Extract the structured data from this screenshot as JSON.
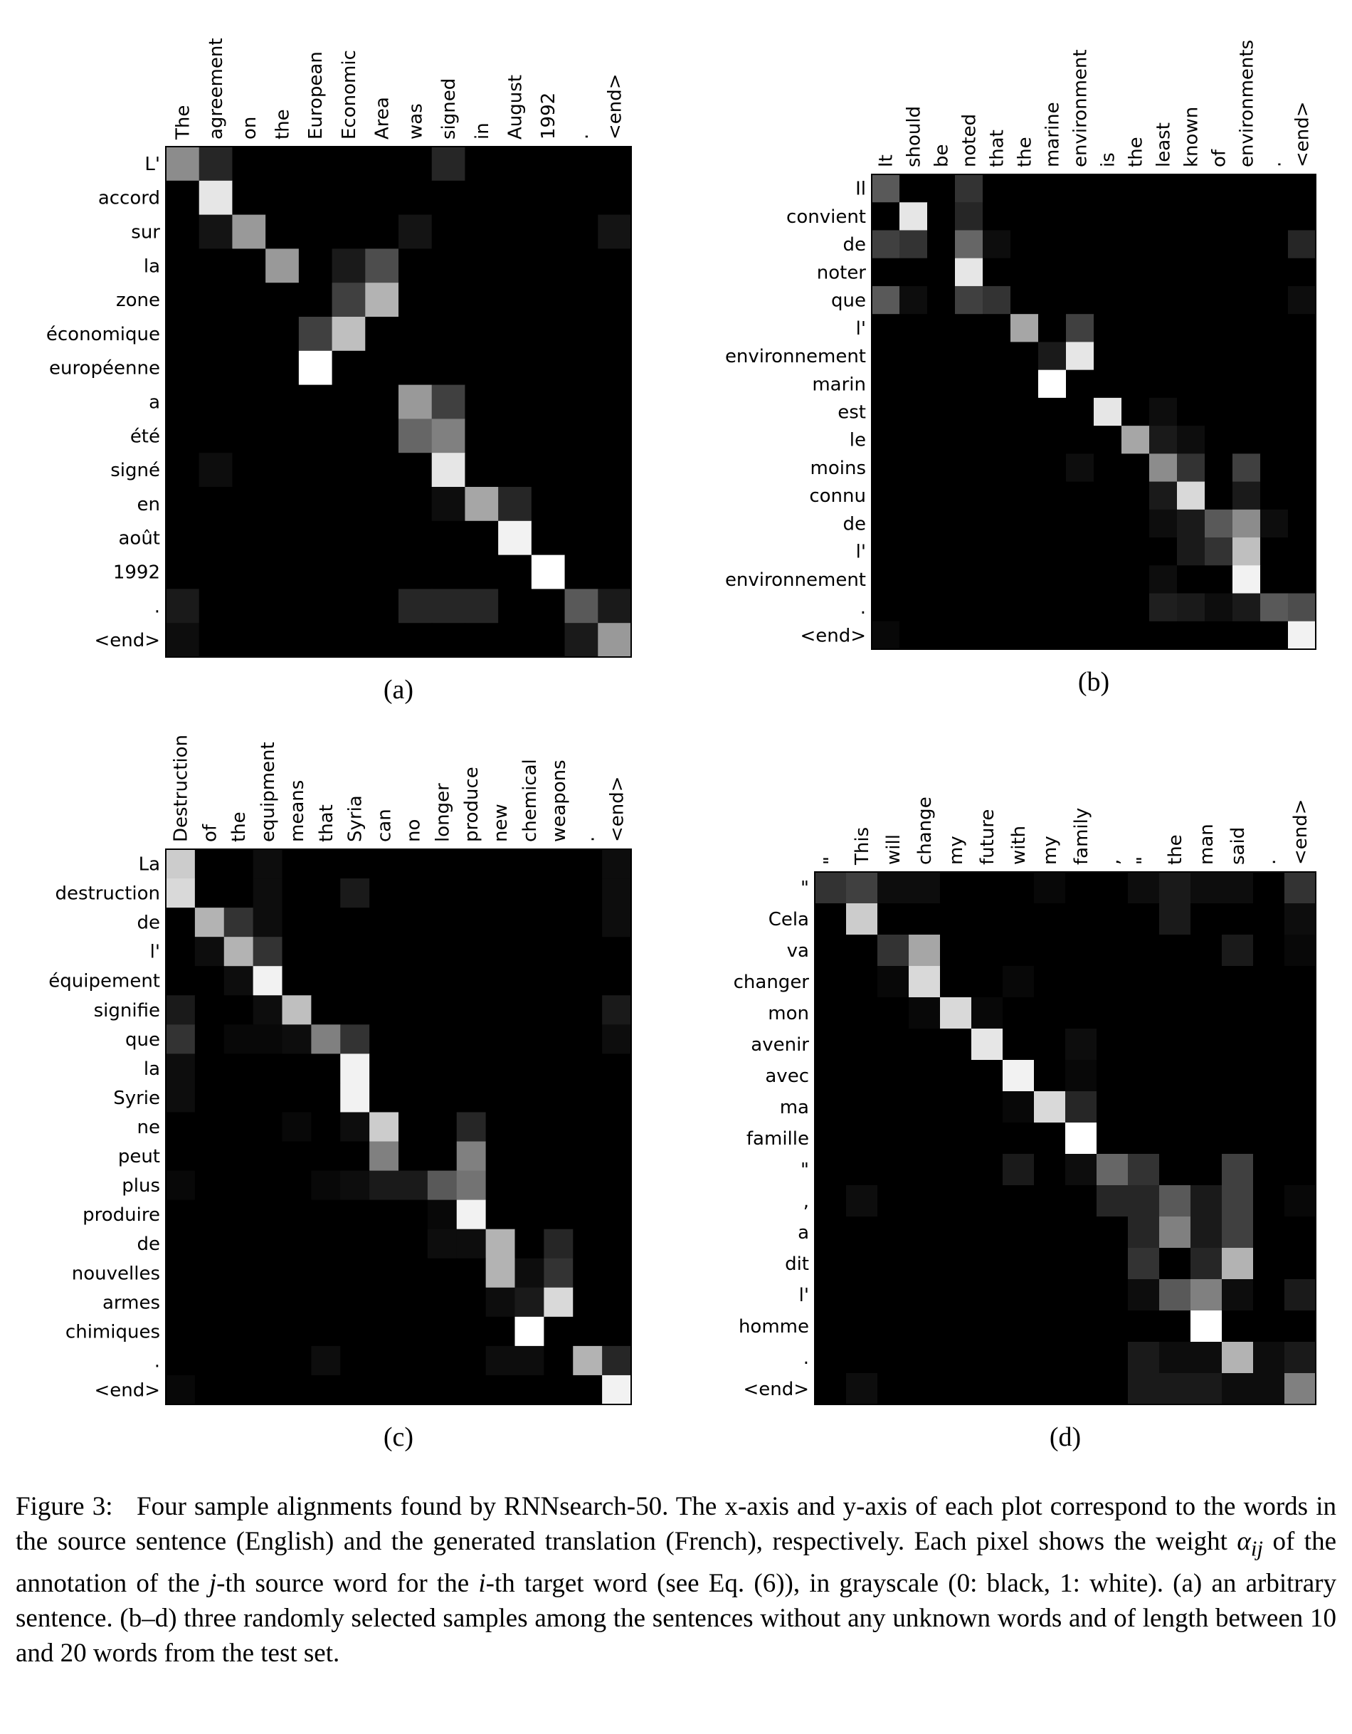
{
  "chart_data": [
    {
      "type": "heatmap",
      "panel_label": "(a)",
      "zlim": [
        0,
        1
      ],
      "x_categories": [
        "The",
        "agreement",
        "on",
        "the",
        "European",
        "Economic",
        "Area",
        "was",
        "signed",
        "in",
        "August",
        "1992",
        ".",
        "<end>"
      ],
      "y_categories": [
        "L'",
        "accord",
        "sur",
        "la",
        "zone",
        "économique",
        "européenne",
        "a",
        "été",
        "signé",
        "en",
        "août",
        "1992",
        ".",
        "<end>"
      ],
      "values": [
        [
          0.55,
          0.15,
          0,
          0,
          0,
          0,
          0,
          0,
          0.15,
          0,
          0,
          0,
          0,
          0
        ],
        [
          0,
          0.9,
          0,
          0,
          0,
          0,
          0,
          0,
          0,
          0,
          0,
          0,
          0,
          0
        ],
        [
          0,
          0.08,
          0.6,
          0,
          0,
          0,
          0,
          0.08,
          0,
          0,
          0,
          0,
          0,
          0.08
        ],
        [
          0,
          0,
          0,
          0.6,
          0,
          0.1,
          0.3,
          0,
          0,
          0,
          0,
          0,
          0,
          0
        ],
        [
          0,
          0,
          0,
          0,
          0,
          0.25,
          0.7,
          0,
          0,
          0,
          0,
          0,
          0,
          0
        ],
        [
          0,
          0,
          0,
          0,
          0.25,
          0.75,
          0,
          0,
          0,
          0,
          0,
          0,
          0,
          0
        ],
        [
          0,
          0,
          0,
          0,
          1,
          0,
          0,
          0,
          0,
          0,
          0,
          0,
          0,
          0
        ],
        [
          0,
          0,
          0,
          0,
          0,
          0,
          0,
          0.6,
          0.25,
          0,
          0,
          0,
          0,
          0
        ],
        [
          0,
          0,
          0,
          0,
          0,
          0,
          0,
          0.4,
          0.5,
          0,
          0,
          0,
          0,
          0
        ],
        [
          0,
          0.05,
          0,
          0,
          0,
          0,
          0,
          0,
          0.9,
          0,
          0,
          0,
          0,
          0
        ],
        [
          0,
          0,
          0,
          0,
          0,
          0,
          0,
          0,
          0.05,
          0.65,
          0.15,
          0,
          0,
          0
        ],
        [
          0,
          0,
          0,
          0,
          0,
          0,
          0,
          0,
          0,
          0,
          0.95,
          0,
          0,
          0
        ],
        [
          0,
          0,
          0,
          0,
          0,
          0,
          0,
          0,
          0,
          0,
          0,
          1,
          0,
          0
        ],
        [
          0.1,
          0,
          0,
          0,
          0,
          0,
          0,
          0.15,
          0.15,
          0.15,
          0,
          0,
          0.35,
          0.1
        ],
        [
          0.05,
          0,
          0,
          0,
          0,
          0,
          0,
          0,
          0,
          0,
          0,
          0,
          0.1,
          0.6
        ]
      ]
    },
    {
      "type": "heatmap",
      "panel_label": "(b)",
      "zlim": [
        0,
        1
      ],
      "x_categories": [
        "It",
        "should",
        "be",
        "noted",
        "that",
        "the",
        "marine",
        "environment",
        "is",
        "the",
        "least",
        "known",
        "of",
        "environments",
        ".",
        "<end>"
      ],
      "y_categories": [
        "Il",
        "convient",
        "de",
        "noter",
        "que",
        "l'",
        "environnement",
        "marin",
        "est",
        "le",
        "moins",
        "connu",
        "de",
        "l'",
        "environnement",
        ".",
        "<end>"
      ],
      "values": [
        [
          0.35,
          0,
          0,
          0.2,
          0,
          0,
          0,
          0,
          0,
          0,
          0,
          0,
          0,
          0,
          0,
          0
        ],
        [
          0,
          0.9,
          0,
          0.15,
          0,
          0,
          0,
          0,
          0,
          0,
          0,
          0,
          0,
          0,
          0,
          0
        ],
        [
          0.25,
          0.2,
          0,
          0.4,
          0.05,
          0,
          0,
          0,
          0,
          0,
          0,
          0,
          0,
          0,
          0,
          0.15
        ],
        [
          0,
          0,
          0,
          0.9,
          0,
          0,
          0,
          0,
          0,
          0,
          0,
          0,
          0,
          0,
          0,
          0
        ],
        [
          0.35,
          0.05,
          0,
          0.25,
          0.2,
          0,
          0,
          0,
          0,
          0,
          0,
          0,
          0,
          0,
          0,
          0.05
        ],
        [
          0,
          0,
          0,
          0,
          0,
          0.65,
          0,
          0.25,
          0,
          0,
          0,
          0,
          0,
          0,
          0,
          0
        ],
        [
          0,
          0,
          0,
          0,
          0,
          0,
          0.1,
          0.9,
          0,
          0,
          0,
          0,
          0,
          0,
          0,
          0
        ],
        [
          0,
          0,
          0,
          0,
          0,
          0,
          1,
          0,
          0,
          0,
          0,
          0,
          0,
          0,
          0,
          0
        ],
        [
          0,
          0,
          0,
          0,
          0,
          0,
          0,
          0,
          0.9,
          0,
          0.05,
          0,
          0,
          0,
          0,
          0
        ],
        [
          0,
          0,
          0,
          0,
          0,
          0,
          0,
          0,
          0,
          0.65,
          0.1,
          0.05,
          0,
          0,
          0,
          0
        ],
        [
          0,
          0,
          0,
          0,
          0,
          0,
          0,
          0.05,
          0,
          0,
          0.55,
          0.2,
          0,
          0.25,
          0,
          0
        ],
        [
          0,
          0,
          0,
          0,
          0,
          0,
          0,
          0,
          0,
          0,
          0.1,
          0.85,
          0,
          0.1,
          0,
          0
        ],
        [
          0,
          0,
          0,
          0,
          0,
          0,
          0,
          0,
          0,
          0,
          0.05,
          0.1,
          0.35,
          0.55,
          0.05,
          0
        ],
        [
          0,
          0,
          0,
          0,
          0,
          0,
          0,
          0,
          0,
          0,
          0,
          0.1,
          0.2,
          0.75,
          0,
          0
        ],
        [
          0,
          0,
          0,
          0,
          0,
          0,
          0,
          0,
          0,
          0,
          0.05,
          0,
          0,
          0.95,
          0,
          0
        ],
        [
          0,
          0,
          0,
          0,
          0,
          0,
          0,
          0,
          0,
          0,
          0.12,
          0.1,
          0.05,
          0.1,
          0.35,
          0.3
        ],
        [
          0.03,
          0,
          0,
          0,
          0,
          0,
          0,
          0,
          0,
          0,
          0,
          0,
          0,
          0,
          0,
          0.95
        ]
      ]
    },
    {
      "type": "heatmap",
      "panel_label": "(c)",
      "zlim": [
        0,
        1
      ],
      "x_categories": [
        "Destruction",
        "of",
        "the",
        "equipment",
        "means",
        "that",
        "Syria",
        "can",
        "no",
        "longer",
        "produce",
        "new",
        "chemical",
        "weapons",
        ".",
        "<end>"
      ],
      "y_categories": [
        "La",
        "destruction",
        "de",
        "l'",
        "équipement",
        "signifie",
        "que",
        "la",
        "Syrie",
        "ne",
        "peut",
        "plus",
        "produire",
        "de",
        "nouvelles",
        "armes",
        "chimiques",
        ".",
        "<end>"
      ],
      "values": [
        [
          0.8,
          0,
          0,
          0.05,
          0,
          0,
          0,
          0,
          0,
          0,
          0,
          0,
          0,
          0,
          0,
          0.05
        ],
        [
          0.85,
          0,
          0,
          0.05,
          0,
          0,
          0.1,
          0,
          0,
          0,
          0,
          0,
          0,
          0,
          0,
          0.05
        ],
        [
          0,
          0.7,
          0.2,
          0.05,
          0,
          0,
          0,
          0,
          0,
          0,
          0,
          0,
          0,
          0,
          0,
          0.05
        ],
        [
          0,
          0.05,
          0.7,
          0.2,
          0,
          0,
          0,
          0,
          0,
          0,
          0,
          0,
          0,
          0,
          0,
          0
        ],
        [
          0,
          0,
          0.05,
          0.95,
          0,
          0,
          0,
          0,
          0,
          0,
          0,
          0,
          0,
          0,
          0,
          0
        ],
        [
          0.1,
          0,
          0,
          0.05,
          0.75,
          0,
          0,
          0,
          0,
          0,
          0,
          0,
          0,
          0,
          0,
          0.1
        ],
        [
          0.2,
          0,
          0.03,
          0.03,
          0.05,
          0.5,
          0.2,
          0,
          0,
          0,
          0,
          0,
          0,
          0,
          0,
          0.05
        ],
        [
          0.05,
          0,
          0,
          0,
          0,
          0,
          0.95,
          0,
          0,
          0,
          0,
          0,
          0,
          0,
          0,
          0
        ],
        [
          0.05,
          0,
          0,
          0,
          0,
          0,
          0.95,
          0,
          0,
          0,
          0,
          0,
          0,
          0,
          0,
          0
        ],
        [
          0,
          0,
          0,
          0,
          0.03,
          0,
          0.05,
          0.8,
          0,
          0,
          0.15,
          0,
          0,
          0,
          0,
          0
        ],
        [
          0,
          0,
          0,
          0,
          0,
          0,
          0,
          0.5,
          0,
          0,
          0.5,
          0,
          0,
          0,
          0,
          0
        ],
        [
          0.03,
          0,
          0,
          0,
          0,
          0.03,
          0.05,
          0.1,
          0.1,
          0.35,
          0.45,
          0,
          0,
          0,
          0,
          0
        ],
        [
          0,
          0,
          0,
          0,
          0,
          0,
          0,
          0,
          0,
          0.03,
          0.95,
          0,
          0,
          0,
          0,
          0
        ],
        [
          0,
          0,
          0,
          0,
          0,
          0,
          0,
          0,
          0,
          0.05,
          0.05,
          0.7,
          0,
          0.15,
          0,
          0
        ],
        [
          0,
          0,
          0,
          0,
          0,
          0,
          0,
          0,
          0,
          0,
          0,
          0.7,
          0.05,
          0.2,
          0,
          0
        ],
        [
          0,
          0,
          0,
          0,
          0,
          0,
          0,
          0,
          0,
          0,
          0,
          0.05,
          0.1,
          0.85,
          0,
          0
        ],
        [
          0,
          0,
          0,
          0,
          0,
          0,
          0,
          0,
          0,
          0,
          0,
          0,
          1,
          0,
          0,
          0
        ],
        [
          0,
          0,
          0,
          0,
          0,
          0.05,
          0,
          0,
          0,
          0,
          0,
          0.05,
          0.05,
          0,
          0.7,
          0.15
        ],
        [
          0.03,
          0,
          0,
          0,
          0,
          0,
          0,
          0,
          0,
          0,
          0,
          0,
          0,
          0,
          0,
          0.95
        ]
      ]
    },
    {
      "type": "heatmap",
      "panel_label": "(d)",
      "zlim": [
        0,
        1
      ],
      "x_categories": [
        "\"",
        "This",
        "will",
        "change",
        "my",
        "future",
        "with",
        "my",
        "family",
        ",",
        "\"",
        "the",
        "man",
        "said",
        ".",
        "<end>"
      ],
      "y_categories": [
        "\"",
        "Cela",
        "va",
        "changer",
        "mon",
        "avenir",
        "avec",
        "ma",
        "famille",
        "\"",
        ",",
        "a",
        "dit",
        "l'",
        "homme",
        ".",
        "<end>"
      ],
      "values": [
        [
          0.2,
          0.25,
          0.05,
          0.05,
          0,
          0,
          0,
          0.03,
          0,
          0,
          0.05,
          0.1,
          0.05,
          0.05,
          0,
          0.2
        ],
        [
          0,
          0.8,
          0,
          0,
          0,
          0,
          0,
          0,
          0,
          0,
          0,
          0.1,
          0,
          0,
          0,
          0.05
        ],
        [
          0,
          0,
          0.2,
          0.65,
          0,
          0,
          0,
          0,
          0,
          0,
          0,
          0,
          0,
          0.1,
          0,
          0.03
        ],
        [
          0,
          0,
          0.03,
          0.85,
          0,
          0,
          0.03,
          0,
          0,
          0,
          0,
          0,
          0,
          0,
          0,
          0
        ],
        [
          0,
          0,
          0,
          0.03,
          0.85,
          0.03,
          0,
          0,
          0,
          0,
          0,
          0,
          0,
          0,
          0,
          0
        ],
        [
          0,
          0,
          0,
          0,
          0,
          0.9,
          0,
          0,
          0.05,
          0,
          0,
          0,
          0,
          0,
          0,
          0
        ],
        [
          0,
          0,
          0,
          0,
          0,
          0,
          0.95,
          0,
          0.03,
          0,
          0,
          0,
          0,
          0,
          0,
          0
        ],
        [
          0,
          0,
          0,
          0,
          0,
          0,
          0.03,
          0.85,
          0.15,
          0,
          0,
          0,
          0,
          0,
          0,
          0
        ],
        [
          0,
          0,
          0,
          0,
          0,
          0,
          0,
          0,
          1,
          0,
          0,
          0,
          0,
          0,
          0,
          0
        ],
        [
          0,
          0,
          0,
          0,
          0,
          0,
          0.1,
          0,
          0.05,
          0.4,
          0.2,
          0,
          0,
          0.25,
          0,
          0
        ],
        [
          0,
          0.05,
          0,
          0,
          0,
          0,
          0,
          0,
          0,
          0.15,
          0.15,
          0.35,
          0.1,
          0.25,
          0,
          0.03
        ],
        [
          0,
          0,
          0,
          0,
          0,
          0,
          0,
          0,
          0,
          0,
          0.15,
          0.5,
          0.1,
          0.25,
          0,
          0
        ],
        [
          0,
          0,
          0,
          0,
          0,
          0,
          0,
          0,
          0,
          0,
          0.2,
          0,
          0.15,
          0.7,
          0,
          0
        ],
        [
          0,
          0,
          0,
          0,
          0,
          0,
          0,
          0,
          0,
          0,
          0.05,
          0.35,
          0.5,
          0.05,
          0,
          0.1
        ],
        [
          0,
          0,
          0,
          0,
          0,
          0,
          0,
          0,
          0,
          0,
          0,
          0,
          1,
          0,
          0,
          0
        ],
        [
          0,
          0,
          0,
          0,
          0,
          0,
          0,
          0,
          0,
          0,
          0.1,
          0.05,
          0.05,
          0.7,
          0.05,
          0.1
        ],
        [
          0,
          0.05,
          0,
          0,
          0,
          0,
          0,
          0,
          0,
          0,
          0.1,
          0.1,
          0.1,
          0.05,
          0.05,
          0.5
        ]
      ]
    }
  ],
  "caption": {
    "label": "Figure 3:",
    "segments": [
      "Four sample alignments found by RNNsearch-50. The x-axis and y-axis of each plot correspond to the words in the source sentence (English) and the generated translation (French), respectively. Each pixel shows the weight ",
      "α",
      "ij",
      " of the annotation of the ",
      "j",
      "-th source word for the ",
      "i",
      "-th target word (see Eq. (6)), in grayscale (0: black, 1: white). (a) an arbitrary sentence. (b–d) three randomly selected samples among the sentences without any unknown words and of length between 10 and 20 words from the test set."
    ]
  }
}
